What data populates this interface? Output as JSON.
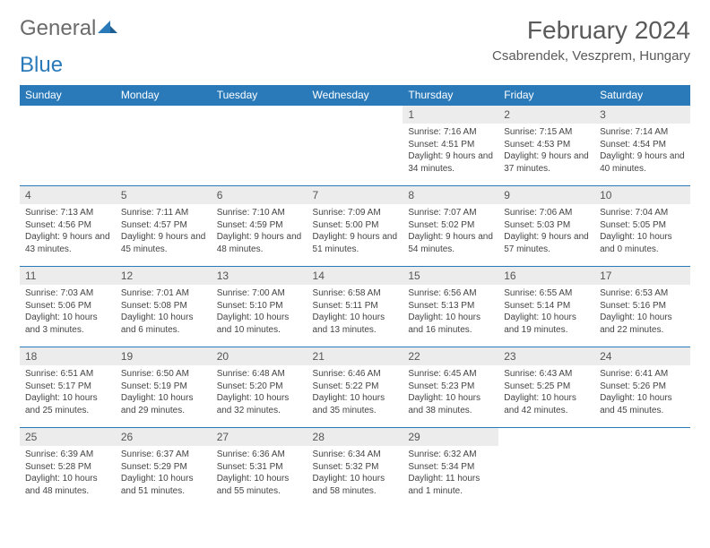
{
  "logo": {
    "text_gray": "General",
    "text_blue": "Blue",
    "icon_color": "#2a7ab9",
    "gray_color": "#6b6b6b"
  },
  "title": "February 2024",
  "location": "Csabrendek, Veszprem, Hungary",
  "colors": {
    "header_bg": "#2a7ab9",
    "header_text": "#ffffff",
    "daynum_bg": "#ececec",
    "border": "#2a7ab9",
    "body_text": "#444444",
    "title_text": "#5a5a5a"
  },
  "typography": {
    "title_fontsize": 28,
    "location_fontsize": 15,
    "dow_fontsize": 12,
    "daynum_fontsize": 12,
    "body_fontsize": 10
  },
  "day_names": [
    "Sunday",
    "Monday",
    "Tuesday",
    "Wednesday",
    "Thursday",
    "Friday",
    "Saturday"
  ],
  "weeks": [
    [
      null,
      null,
      null,
      null,
      {
        "num": "1",
        "sunrise": "7:16 AM",
        "sunset": "4:51 PM",
        "daylight": "9 hours and 34 minutes."
      },
      {
        "num": "2",
        "sunrise": "7:15 AM",
        "sunset": "4:53 PM",
        "daylight": "9 hours and 37 minutes."
      },
      {
        "num": "3",
        "sunrise": "7:14 AM",
        "sunset": "4:54 PM",
        "daylight": "9 hours and 40 minutes."
      }
    ],
    [
      {
        "num": "4",
        "sunrise": "7:13 AM",
        "sunset": "4:56 PM",
        "daylight": "9 hours and 43 minutes."
      },
      {
        "num": "5",
        "sunrise": "7:11 AM",
        "sunset": "4:57 PM",
        "daylight": "9 hours and 45 minutes."
      },
      {
        "num": "6",
        "sunrise": "7:10 AM",
        "sunset": "4:59 PM",
        "daylight": "9 hours and 48 minutes."
      },
      {
        "num": "7",
        "sunrise": "7:09 AM",
        "sunset": "5:00 PM",
        "daylight": "9 hours and 51 minutes."
      },
      {
        "num": "8",
        "sunrise": "7:07 AM",
        "sunset": "5:02 PM",
        "daylight": "9 hours and 54 minutes."
      },
      {
        "num": "9",
        "sunrise": "7:06 AM",
        "sunset": "5:03 PM",
        "daylight": "9 hours and 57 minutes."
      },
      {
        "num": "10",
        "sunrise": "7:04 AM",
        "sunset": "5:05 PM",
        "daylight": "10 hours and 0 minutes."
      }
    ],
    [
      {
        "num": "11",
        "sunrise": "7:03 AM",
        "sunset": "5:06 PM",
        "daylight": "10 hours and 3 minutes."
      },
      {
        "num": "12",
        "sunrise": "7:01 AM",
        "sunset": "5:08 PM",
        "daylight": "10 hours and 6 minutes."
      },
      {
        "num": "13",
        "sunrise": "7:00 AM",
        "sunset": "5:10 PM",
        "daylight": "10 hours and 10 minutes."
      },
      {
        "num": "14",
        "sunrise": "6:58 AM",
        "sunset": "5:11 PM",
        "daylight": "10 hours and 13 minutes."
      },
      {
        "num": "15",
        "sunrise": "6:56 AM",
        "sunset": "5:13 PM",
        "daylight": "10 hours and 16 minutes."
      },
      {
        "num": "16",
        "sunrise": "6:55 AM",
        "sunset": "5:14 PM",
        "daylight": "10 hours and 19 minutes."
      },
      {
        "num": "17",
        "sunrise": "6:53 AM",
        "sunset": "5:16 PM",
        "daylight": "10 hours and 22 minutes."
      }
    ],
    [
      {
        "num": "18",
        "sunrise": "6:51 AM",
        "sunset": "5:17 PM",
        "daylight": "10 hours and 25 minutes."
      },
      {
        "num": "19",
        "sunrise": "6:50 AM",
        "sunset": "5:19 PM",
        "daylight": "10 hours and 29 minutes."
      },
      {
        "num": "20",
        "sunrise": "6:48 AM",
        "sunset": "5:20 PM",
        "daylight": "10 hours and 32 minutes."
      },
      {
        "num": "21",
        "sunrise": "6:46 AM",
        "sunset": "5:22 PM",
        "daylight": "10 hours and 35 minutes."
      },
      {
        "num": "22",
        "sunrise": "6:45 AM",
        "sunset": "5:23 PM",
        "daylight": "10 hours and 38 minutes."
      },
      {
        "num": "23",
        "sunrise": "6:43 AM",
        "sunset": "5:25 PM",
        "daylight": "10 hours and 42 minutes."
      },
      {
        "num": "24",
        "sunrise": "6:41 AM",
        "sunset": "5:26 PM",
        "daylight": "10 hours and 45 minutes."
      }
    ],
    [
      {
        "num": "25",
        "sunrise": "6:39 AM",
        "sunset": "5:28 PM",
        "daylight": "10 hours and 48 minutes."
      },
      {
        "num": "26",
        "sunrise": "6:37 AM",
        "sunset": "5:29 PM",
        "daylight": "10 hours and 51 minutes."
      },
      {
        "num": "27",
        "sunrise": "6:36 AM",
        "sunset": "5:31 PM",
        "daylight": "10 hours and 55 minutes."
      },
      {
        "num": "28",
        "sunrise": "6:34 AM",
        "sunset": "5:32 PM",
        "daylight": "10 hours and 58 minutes."
      },
      {
        "num": "29",
        "sunrise": "6:32 AM",
        "sunset": "5:34 PM",
        "daylight": "11 hours and 1 minute."
      },
      null,
      null
    ]
  ],
  "labels": {
    "sunrise": "Sunrise:",
    "sunset": "Sunset:",
    "daylight": "Daylight:"
  }
}
